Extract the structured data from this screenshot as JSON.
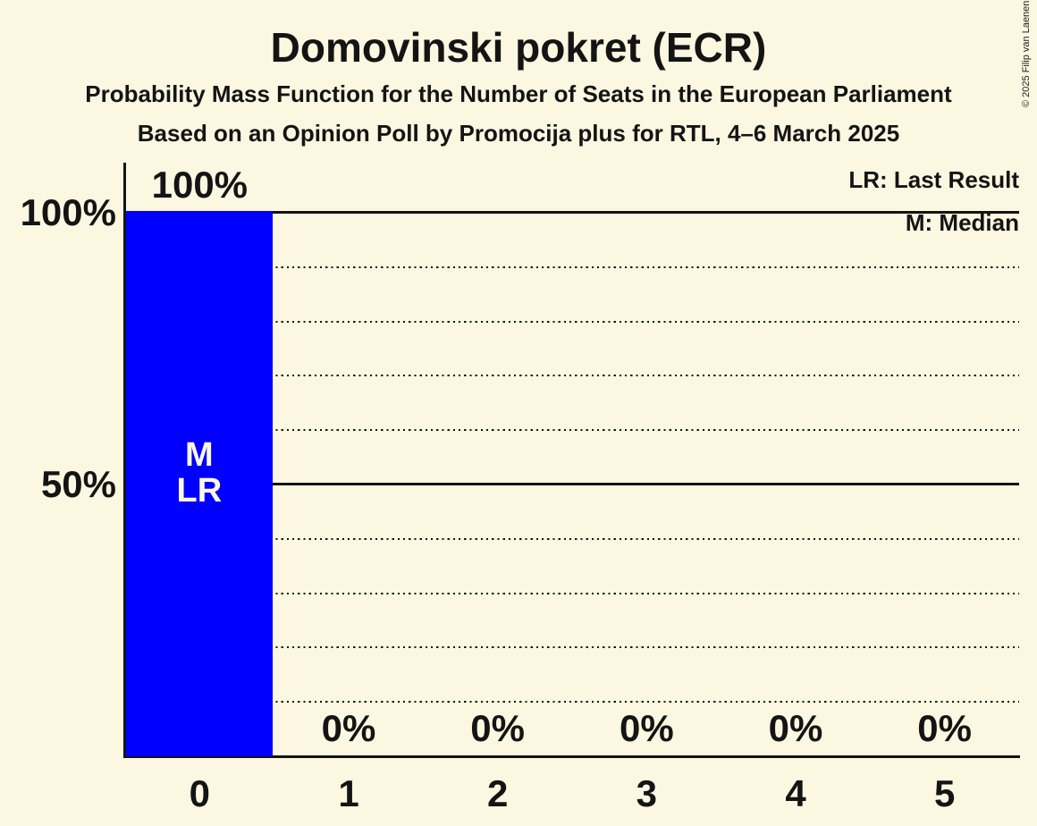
{
  "page": {
    "background_color": "#FCF7E0",
    "text_color": "#141414"
  },
  "copyright": "© 2025 Filip van Laenen",
  "chart_data": {
    "type": "bar",
    "title": "Domovinski pokret (ECR)",
    "subtitle": "Probability Mass Function for the Number of Seats in the European Parliament",
    "subsubtitle": "Based on an Opinion Poll by Promocija plus for RTL, 4–6 March 2025",
    "categories": [
      "0",
      "1",
      "2",
      "3",
      "4",
      "5"
    ],
    "values": [
      100,
      0,
      0,
      0,
      0,
      0
    ],
    "bar_value_labels": [
      "100%",
      "0%",
      "0%",
      "0%",
      "0%",
      "0%"
    ],
    "bar_color": "#0000FF",
    "bar_inner_label_lines": [
      "M",
      "LR"
    ],
    "bar_inner_label_color": "#FCF7E0",
    "median_seats": 0,
    "last_result_seats": 0,
    "legend": [
      {
        "label": "LR: Last Result"
      },
      {
        "label": "M: Median"
      }
    ],
    "xlabel": "",
    "ylabel": "",
    "ylim": [
      0,
      100
    ],
    "ytick_labels": [
      {
        "percent": 100,
        "label": "100%"
      },
      {
        "percent": 50,
        "label": "50%"
      }
    ],
    "solid_gridlines_percent": [
      50,
      100
    ],
    "dotted_gridlines_percent": [
      10,
      20,
      30,
      40,
      60,
      70,
      80,
      90
    ],
    "grid": true,
    "legend_position": "top-right"
  }
}
